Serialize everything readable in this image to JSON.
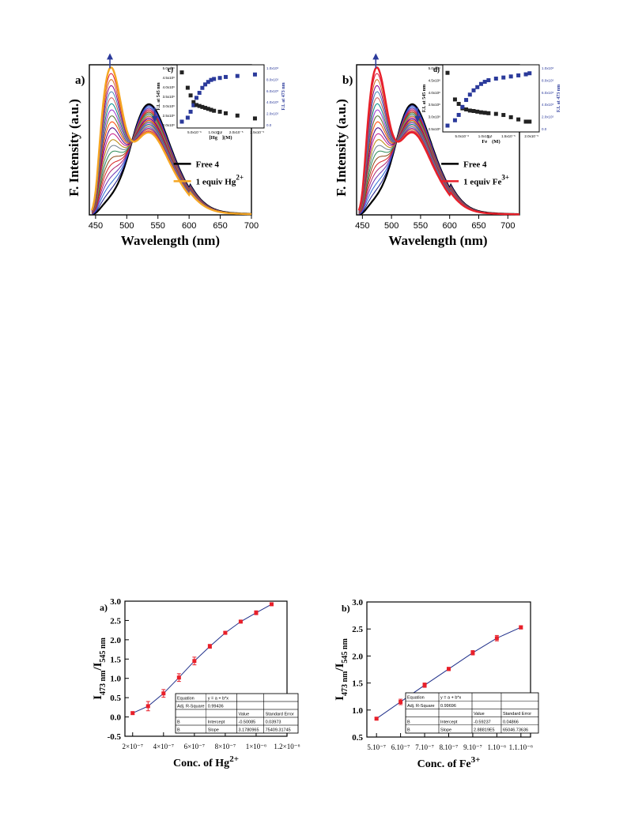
{
  "chart_data": [
    {
      "type": "line",
      "panel_label": "a)",
      "xlabel": "Wavelength (nm)",
      "ylabel": "F. Intensity (a.u.)",
      "xlim": [
        440,
        700
      ],
      "xticks": [
        "450",
        "500",
        "550",
        "600",
        "650",
        "700"
      ],
      "legend": {
        "placement": "right",
        "entries": [
          {
            "label": "Free 4",
            "color": "#000000"
          },
          {
            "label": "1 equiv Hg",
            "sup": "2+",
            "color": "#f5a623"
          }
        ]
      },
      "colors": {
        "start": "#000000",
        "end": "#f5a623"
      },
      "curves": 22,
      "peak_left_nm": 473,
      "peak_right_nm": 545,
      "isosbestic_nm": 520,
      "inset": {
        "label": "c)",
        "xlabel_pre": "[Hg",
        "xlabel_sup": "2+",
        "xlabel_post": "](M)",
        "ylabel_left": "F.I. at 545 nm",
        "ylabel_right": "F.I. at 473 nm",
        "left_color": "#222222",
        "right_color": "#2b3a9b",
        "x_ticks": [
          "5.0x10⁻⁶",
          "1.0x10⁻⁵",
          "2.0x10⁻⁵",
          "2.5x10⁻⁵"
        ],
        "left_ticks": [
          "5.0x10⁶",
          "4.5x10⁶",
          "4.0x10⁶",
          "3.5x10⁶",
          "3.0x10⁶",
          "2.5x10⁶",
          "2.0x10⁶"
        ],
        "right_ticks": [
          "1.0x10⁶",
          "8.0x10⁵",
          "6.0x10⁵",
          "4.0x10⁵",
          "2.0x10⁵",
          "0.0"
        ],
        "x": [
          0.0,
          2.0,
          3.0,
          4.0,
          5.0,
          6.0,
          7.0,
          8.0,
          9.0,
          10.0,
          11.0,
          13.0,
          15.0,
          19.0,
          25.0
        ],
        "left_values": [
          4.75,
          3.95,
          3.55,
          3.2,
          3.05,
          3.0,
          2.95,
          2.9,
          2.85,
          2.8,
          2.75,
          2.7,
          2.62,
          2.5,
          2.35
        ],
        "right_values": [
          0.0,
          0.08,
          0.2,
          0.33,
          0.48,
          0.58,
          0.68,
          0.75,
          0.8,
          0.84,
          0.86,
          0.88,
          0.9,
          0.92,
          0.95
        ]
      }
    },
    {
      "type": "line",
      "panel_label": "b)",
      "xlabel": "Wavelength (nm)",
      "ylabel": "F. Intensity (a.u.)",
      "xlim": [
        440,
        720
      ],
      "xticks": [
        "450",
        "500",
        "550",
        "600",
        "650",
        "700"
      ],
      "legend": {
        "placement": "right",
        "entries": [
          {
            "label": "Free 4",
            "color": "#000000"
          },
          {
            "label": "1 equiv Fe",
            "sup": "3+",
            "color": "#e8202a"
          }
        ]
      },
      "colors": {
        "start": "#000000",
        "end": "#e8202a"
      },
      "curves": 22,
      "peak_left_nm": 473,
      "peak_right_nm": 545,
      "isosbestic_nm": 520,
      "inset": {
        "label": "d)",
        "xlabel_pre": "Fe",
        "xlabel_sup": "3+",
        "xlabel_post": "(M)",
        "ylabel_left": "F.I. at 545 nm",
        "ylabel_right": "F.I. at 473 nm",
        "left_color": "#222222",
        "right_color": "#2b3a9b",
        "x_ticks": [
          "5.0x10⁻⁶",
          "1.0x10⁻⁵",
          "1.5x10⁻⁵",
          "2.0x10⁻⁵"
        ],
        "left_ticks": [
          "5.0x10⁶",
          "4.5x10⁶",
          "4.0x10⁶",
          "3.5x10⁶",
          "3.0x10⁶",
          "2.5x10⁶"
        ],
        "right_ticks": [
          "1.0x10⁶",
          "8.0x10⁵",
          "6.0x10⁵",
          "4.0x10⁵",
          "2.0x10⁵",
          "0.0"
        ],
        "x": [
          0.0,
          2.0,
          3.0,
          4.0,
          5.0,
          6.0,
          7.0,
          8.0,
          9.0,
          10.0,
          11.0,
          13.0,
          15.0,
          17.0,
          19.0,
          21.0,
          22.0
        ],
        "left_values": [
          4.8,
          3.6,
          3.4,
          3.2,
          3.15,
          3.1,
          3.08,
          3.05,
          3.02,
          3.0,
          2.98,
          2.95,
          2.9,
          2.8,
          2.7,
          2.6,
          2.6
        ],
        "right_values": [
          0.0,
          0.1,
          0.2,
          0.35,
          0.48,
          0.58,
          0.66,
          0.72,
          0.78,
          0.82,
          0.85,
          0.88,
          0.9,
          0.92,
          0.94,
          0.96,
          0.98
        ]
      }
    },
    {
      "type": "scatter",
      "panel_label": "a)",
      "xlabel_pre": "Conc. of Hg",
      "xlabel_sup": "2+",
      "ylabel": "I473 nm/I545 nm",
      "ylim": [
        -0.5,
        3.0
      ],
      "yticks": [
        "-0.5",
        "0.0",
        "0.5",
        "1.0",
        "1.5",
        "2.0",
        "2.5",
        "3.0"
      ],
      "xlim": [
        1.5,
        12.0
      ],
      "xticks": [
        {
          "v": 2,
          "label": "2×10⁻⁷"
        },
        {
          "v": 4,
          "label": "4×10⁻⁷"
        },
        {
          "v": 6,
          "label": "6×10⁻⁷"
        },
        {
          "v": 8,
          "label": "8×10⁻⁷"
        },
        {
          "v": 10,
          "label": "1×10⁻⁶"
        },
        {
          "v": 12,
          "label": "1.2×10⁻⁶"
        }
      ],
      "x": [
        2,
        3,
        4,
        5,
        6,
        7,
        8,
        9,
        10,
        11
      ],
      "values": [
        0.1,
        0.28,
        0.61,
        1.02,
        1.45,
        1.83,
        2.18,
        2.47,
        2.7,
        2.92
      ],
      "errors": [
        0.03,
        0.12,
        0.1,
        0.1,
        0.1,
        0.05,
        0.03,
        0.03,
        0.05,
        0.03
      ],
      "marker_color": "#e8202a",
      "line_color": "#1f2f8a",
      "table": [
        [
          "Equation",
          "y = a + b*x",
          "",
          ""
        ],
        [
          "Adj. R-Square",
          "0.99436",
          "",
          ""
        ],
        [
          "",
          "",
          "Value",
          "Standard Error"
        ],
        [
          "B",
          "Intercept",
          "-0.50085",
          "0.03973"
        ],
        [
          "B",
          "Slope",
          "3.1780965",
          "75409.31745"
        ]
      ]
    },
    {
      "type": "scatter",
      "panel_label": "b)",
      "xlabel_pre": "Conc. of Fe",
      "xlabel_sup": "3+",
      "ylabel": "I473 nm/I545 nm",
      "ylim": [
        0.5,
        3.0
      ],
      "yticks": [
        "0.5",
        "1.0",
        "1.5",
        "2.0",
        "2.5",
        "3.0"
      ],
      "xlim": [
        4.6,
        11.4
      ],
      "xticks": [
        {
          "v": 5,
          "label": "5.10⁻⁷"
        },
        {
          "v": 6,
          "label": "6.10⁻⁷"
        },
        {
          "v": 7,
          "label": "7.10⁻⁷"
        },
        {
          "v": 8,
          "label": "8.10⁻⁷"
        },
        {
          "v": 9,
          "label": "9.10⁻⁷"
        },
        {
          "v": 10,
          "label": "1.10⁻⁶"
        },
        {
          "v": 11,
          "label": "1.1.10⁻⁶"
        }
      ],
      "x": [
        5,
        6,
        7,
        8,
        9,
        10,
        11
      ],
      "values": [
        0.84,
        1.15,
        1.46,
        1.76,
        2.06,
        2.33,
        2.53
      ],
      "errors": [
        0.02,
        0.05,
        0.04,
        0.03,
        0.04,
        0.05,
        0.03
      ],
      "marker_color": "#e8202a",
      "line_color": "#1f2f8a",
      "table": [
        [
          "Equation",
          "y = a + b*x",
          "",
          ""
        ],
        [
          "Adj. R-Square",
          "0.99696",
          "",
          ""
        ],
        [
          "",
          "",
          "Value",
          "Standard Error"
        ],
        [
          "B",
          "Intercept",
          "-0.59237",
          "0.04866"
        ],
        [
          "B",
          "Slope",
          "2.88819E5",
          "65046.73636"
        ]
      ]
    }
  ]
}
